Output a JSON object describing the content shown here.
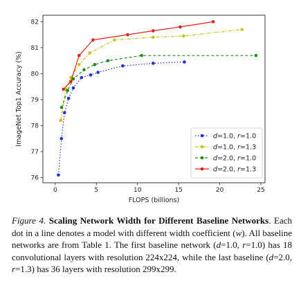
{
  "chart_data": {
    "type": "line",
    "title": "",
    "xlabel": "FLOPS (billions)",
    "ylabel": "ImageNet Top1 Accuracy (%)",
    "xlim": [
      -1.5,
      25.5
    ],
    "ylim": [
      75.8,
      82.25
    ],
    "xticks": [
      "0",
      "5",
      "10",
      "15",
      "20",
      "25"
    ],
    "yticks": [
      "76",
      "77",
      "78",
      "79",
      "80",
      "81",
      "82"
    ],
    "xtick_values": [
      0,
      5,
      10,
      15,
      20,
      25
    ],
    "ytick_values": [
      76,
      77,
      78,
      79,
      80,
      81,
      82
    ],
    "grid": false,
    "legend_position": "bottom-right",
    "series": [
      {
        "name": "d=1.0, r=1.0",
        "legend_parts": [
          {
            "t": "d",
            "i": true
          },
          {
            "t": "=1.0, ",
            "i": false
          },
          {
            "t": "r",
            "i": true
          },
          {
            "t": "=1.0",
            "i": false
          }
        ],
        "color": "#1f2fd4",
        "dash": "1.5,2.5",
        "x": [
          0.39,
          0.75,
          1.13,
          1.62,
          2.2,
          3.2,
          4.3,
          5.2,
          8.2,
          11.9,
          15.7
        ],
        "y": [
          76.1,
          77.5,
          78.5,
          79.05,
          79.45,
          79.85,
          79.95,
          80.05,
          80.3,
          80.4,
          80.45
        ]
      },
      {
        "name": "d=1.0, r=1.3",
        "legend_parts": [
          {
            "t": "d",
            "i": true
          },
          {
            "t": "=1.0, ",
            "i": false
          },
          {
            "t": "r",
            "i": true
          },
          {
            "t": "=1.3",
            "i": false
          }
        ],
        "color": "#c4c41c",
        "dash": "5,2,1.5,2",
        "x": [
          0.66,
          1.3,
          1.9,
          2.9,
          4.2,
          7.2,
          11.9,
          15.6,
          22.7
        ],
        "y": [
          78.2,
          79.4,
          79.85,
          80.35,
          80.8,
          81.3,
          81.4,
          81.45,
          81.7
        ]
      },
      {
        "name": "d=2.0, r=1.0",
        "legend_parts": [
          {
            "t": "d",
            "i": true
          },
          {
            "t": "=2.0, ",
            "i": false
          },
          {
            "t": "r",
            "i": true
          },
          {
            "t": "=1.0",
            "i": false
          }
        ],
        "color": "#1f8a1f",
        "dash": "4,3",
        "x": [
          0.77,
          1.5,
          2.2,
          3.5,
          4.8,
          6.4,
          10.5,
          24.4
        ],
        "y": [
          78.7,
          79.35,
          79.8,
          80.15,
          80.35,
          80.5,
          80.7,
          80.7
        ]
      },
      {
        "name": "d=2.0, r=1.3",
        "legend_parts": [
          {
            "t": "d",
            "i": true
          },
          {
            "t": "=2.0, ",
            "i": false
          },
          {
            "t": "r",
            "i": true
          },
          {
            "t": "=1.3",
            "i": false
          }
        ],
        "color": "#e0211a",
        "dash": "",
        "x": [
          1.0,
          1.9,
          2.9,
          4.6,
          8.8,
          11.9,
          15.2,
          19.2
        ],
        "y": [
          79.4,
          79.7,
          80.7,
          81.3,
          81.5,
          81.65,
          81.8,
          82.0
        ]
      }
    ]
  },
  "caption": {
    "label": "Figure 4.",
    "title": "Scaling Network Width for Different Baseline Networks",
    "parts": [
      {
        "t": ". Each dot in a line denotes a model with different width coefficient (",
        "i": false
      },
      {
        "t": "w",
        "i": true
      },
      {
        "t": "). All baseline networks are from Table 1. The first baseline network (",
        "i": false
      },
      {
        "t": "d",
        "i": true
      },
      {
        "t": "=1.0, ",
        "i": false
      },
      {
        "t": "r",
        "i": true
      },
      {
        "t": "=1.0) has 18 convolutional layers with resolution 224x224, while the last baseline (",
        "i": false
      },
      {
        "t": "d",
        "i": true
      },
      {
        "t": "=2.0, ",
        "i": false
      },
      {
        "t": "r",
        "i": true
      },
      {
        "t": "=1.3) has 36 layers with resolution 299x299.",
        "i": false
      }
    ]
  }
}
